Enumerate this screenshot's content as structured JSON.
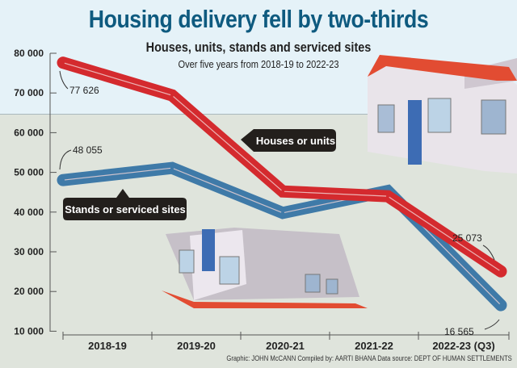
{
  "title": "Housing delivery fell by two-thirds",
  "subtitle": "Houses, units, stands and serviced sites",
  "subtitle2": "Over five years from 2018-19 to 2022-23",
  "credits": "Graphic: JOHN McCANN  Compiled by: AARTI BHANA  Data source: DEPT OF HUMAN SETTLEMENTS",
  "chart_data": {
    "type": "line",
    "categories": [
      "2018-19",
      "2019-20",
      "2020-21",
      "2021-22",
      "2022-23 (Q3)"
    ],
    "ylim": [
      10000,
      80000
    ],
    "yticks": [
      "80 000",
      "70 000",
      "60 000",
      "50 000",
      "40 000",
      "30 000",
      "20 000",
      "10 000"
    ],
    "grid": false,
    "series": [
      {
        "name": "Houses or units",
        "color": "#d42a2e",
        "values": [
          77626,
          69400,
          45200,
          44000,
          25073
        ],
        "labels": [
          "77 626",
          null,
          null,
          null,
          "25 073"
        ]
      },
      {
        "name": "Stands or serviced sites",
        "color": "#3f7aa8",
        "values": [
          48055,
          51100,
          39800,
          45300,
          16565
        ],
        "labels": [
          "48 055",
          null,
          null,
          null,
          "16 565"
        ]
      }
    ]
  }
}
